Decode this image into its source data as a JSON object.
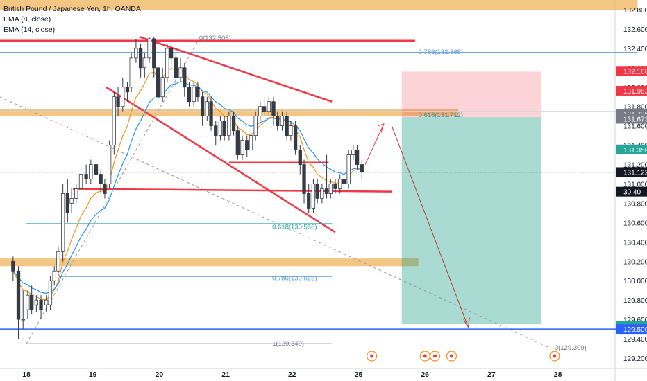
{
  "chart_data": {
    "type": "candlestick",
    "symbol": "British Pound / Japanese Yen, 1h, OANDA",
    "indicators": [
      "EMA (8, close)",
      "EMA (14, close)"
    ],
    "y_axis": {
      "range": [
        129.1,
        132.9
      ],
      "ticks": [
        "132.800",
        "132.600",
        "132.400",
        "132.200",
        "132.000",
        "131.800",
        "131.600",
        "131.400",
        "131.200",
        "131.000",
        "130.800",
        "130.600",
        "130.400",
        "130.200",
        "130.000",
        "129.800",
        "129.600",
        "129.400",
        "129.200"
      ]
    },
    "x_axis": {
      "ticks": [
        {
          "label": "18",
          "t": 0
        },
        {
          "label": "19",
          "t": 1
        },
        {
          "label": "20",
          "t": 2
        },
        {
          "label": "21",
          "t": 3
        },
        {
          "label": "22",
          "t": 4
        },
        {
          "label": "25",
          "t": 5
        },
        {
          "label": "26",
          "t": 6
        },
        {
          "label": "27",
          "t": 7
        },
        {
          "label": "28",
          "t": 8
        }
      ]
    },
    "price_tags": [
      {
        "value": "132.168",
        "price": 132.168,
        "color": "#f23645"
      },
      {
        "value": "131.963",
        "price": 131.963,
        "color": "#f23645"
      },
      {
        "value": "131.725",
        "price": 131.725,
        "color": "#787b86"
      },
      {
        "value": "131.673",
        "price": 131.673,
        "color": "#787b86"
      },
      {
        "value": "131.356",
        "price": 131.356,
        "color": "#26a69a"
      },
      {
        "value": "131.122",
        "price": 131.122,
        "color": "#131722"
      },
      {
        "value": "30:40",
        "price": 130.92,
        "color": "#131722"
      },
      {
        "value": "129.537",
        "price": 129.537,
        "color": "#26a69a"
      },
      {
        "value": "129.500",
        "price": 129.5,
        "color": "#2962ff"
      }
    ],
    "fib_labels": [
      {
        "text": "0(132.508)",
        "t": 2.6,
        "price": 132.508
      },
      {
        "text": "0.786(132.365)",
        "t": 5.9,
        "price": 132.365
      },
      {
        "text": "0.618(131.712)",
        "t": 5.9,
        "price": 131.712
      },
      {
        "text": "0.618(130.556)",
        "t": 3.7,
        "price": 130.556
      },
      {
        "text": "0.786(130.025)",
        "t": 3.7,
        "price": 130.025
      },
      {
        "text": "1(129.349)",
        "t": 3.7,
        "price": 129.349
      },
      {
        "text": "0(129.309)",
        "t": 7.95,
        "price": 129.309
      }
    ],
    "candles": [
      [
        -0.2,
        130.2,
        130.1,
        130.25,
        130.0
      ],
      [
        -0.12,
        130.1,
        129.6,
        130.15,
        129.4
      ],
      [
        -0.05,
        129.6,
        129.6,
        129.9,
        129.5
      ],
      [
        0.02,
        129.7,
        129.85,
        129.9,
        129.6
      ],
      [
        0.08,
        129.85,
        129.7,
        129.95,
        129.65
      ],
      [
        0.15,
        129.75,
        129.8,
        129.85,
        129.68
      ],
      [
        0.22,
        129.8,
        129.7,
        129.85,
        129.6
      ],
      [
        0.3,
        129.75,
        129.8,
        129.85,
        129.68
      ],
      [
        0.36,
        129.75,
        130.0,
        130.05,
        129.7
      ],
      [
        0.42,
        130.0,
        130.1,
        130.15,
        129.95
      ],
      [
        0.48,
        130.1,
        130.3,
        130.35,
        130.05
      ],
      [
        0.55,
        130.3,
        130.9,
        131.0,
        130.2
      ],
      [
        0.62,
        130.9,
        130.7,
        131.05,
        130.6
      ],
      [
        0.68,
        130.8,
        130.85,
        130.95,
        130.7
      ],
      [
        0.75,
        130.85,
        130.95,
        131.0,
        130.8
      ],
      [
        0.82,
        130.95,
        131.1,
        131.15,
        130.9
      ],
      [
        0.9,
        131.1,
        131.05,
        131.2,
        131.0
      ],
      [
        0.97,
        131.05,
        131.2,
        131.25,
        131.0
      ],
      [
        1.05,
        131.2,
        131.1,
        131.3,
        131.0
      ],
      [
        1.12,
        131.1,
        131.0,
        131.15,
        130.9
      ],
      [
        1.18,
        131.0,
        130.9,
        131.05,
        130.85
      ],
      [
        1.25,
        131.0,
        131.4,
        131.45,
        130.95
      ],
      [
        1.32,
        131.4,
        131.9,
        131.95,
        131.3
      ],
      [
        1.38,
        131.9,
        131.8,
        132.0,
        131.7
      ],
      [
        1.45,
        131.8,
        132.0,
        132.1,
        131.75
      ],
      [
        1.52,
        132.0,
        131.95,
        132.05,
        131.85
      ],
      [
        1.58,
        132.0,
        132.3,
        132.35,
        131.95
      ],
      [
        1.65,
        132.3,
        132.4,
        132.5,
        132.25
      ],
      [
        1.72,
        132.4,
        132.2,
        132.45,
        132.1
      ],
      [
        1.78,
        132.2,
        132.3,
        132.35,
        132.1
      ],
      [
        1.85,
        132.3,
        132.5,
        132.52,
        132.25
      ],
      [
        1.92,
        132.5,
        132.2,
        132.52,
        132.1
      ],
      [
        1.98,
        132.2,
        131.9,
        132.25,
        131.8
      ],
      [
        2.05,
        131.9,
        132.1,
        132.2,
        131.85
      ],
      [
        2.12,
        132.1,
        132.4,
        132.45,
        132.05
      ],
      [
        2.18,
        132.4,
        132.3,
        132.45,
        132.2
      ],
      [
        2.25,
        132.3,
        132.1,
        132.35,
        132.0
      ],
      [
        2.32,
        132.1,
        132.2,
        132.3,
        132.05
      ],
      [
        2.38,
        132.2,
        132.0,
        132.25,
        131.9
      ],
      [
        2.45,
        132.0,
        131.85,
        132.05,
        131.8
      ],
      [
        2.52,
        131.85,
        132.0,
        132.05,
        131.8
      ],
      [
        2.58,
        132.0,
        131.9,
        132.05,
        131.85
      ],
      [
        2.65,
        131.9,
        131.7,
        131.95,
        131.6
      ],
      [
        2.72,
        131.7,
        131.85,
        131.9,
        131.65
      ],
      [
        2.78,
        131.85,
        131.6,
        131.9,
        131.55
      ],
      [
        2.85,
        131.6,
        131.5,
        131.65,
        131.4
      ],
      [
        2.92,
        131.5,
        131.65,
        131.7,
        131.45
      ],
      [
        2.98,
        131.65,
        131.5,
        131.7,
        131.45
      ],
      [
        3.05,
        131.5,
        131.7,
        131.75,
        131.45
      ],
      [
        3.12,
        131.7,
        131.55,
        131.75,
        131.5
      ],
      [
        3.18,
        131.55,
        131.3,
        131.6,
        131.25
      ],
      [
        3.25,
        131.3,
        131.45,
        131.5,
        131.25
      ],
      [
        3.32,
        131.45,
        131.35,
        131.5,
        131.28
      ],
      [
        3.38,
        131.35,
        131.5,
        131.55,
        131.3
      ],
      [
        3.45,
        131.5,
        131.7,
        131.75,
        131.45
      ],
      [
        3.52,
        131.7,
        131.8,
        131.85,
        131.65
      ],
      [
        3.58,
        131.8,
        131.75,
        131.9,
        131.7
      ],
      [
        3.65,
        131.75,
        131.85,
        131.9,
        131.7
      ],
      [
        3.72,
        131.85,
        131.7,
        131.9,
        131.6
      ],
      [
        3.78,
        131.7,
        131.6,
        131.75,
        131.55
      ],
      [
        3.85,
        131.6,
        131.7,
        131.75,
        131.55
      ],
      [
        3.92,
        131.7,
        131.5,
        131.75,
        131.45
      ],
      [
        3.98,
        131.5,
        131.6,
        131.65,
        131.45
      ],
      [
        4.05,
        131.6,
        131.35,
        131.65,
        131.3
      ],
      [
        4.12,
        131.35,
        131.2,
        131.4,
        131.1
      ],
      [
        4.18,
        131.2,
        130.9,
        131.25,
        130.8
      ],
      [
        4.25,
        130.9,
        130.75,
        131.0,
        130.7
      ],
      [
        4.32,
        130.75,
        131.0,
        131.05,
        130.7
      ],
      [
        4.38,
        131.0,
        130.85,
        131.05,
        130.8
      ],
      [
        4.45,
        130.85,
        130.95,
        131.0,
        130.8
      ],
      [
        4.52,
        130.95,
        130.9,
        131.3,
        130.85
      ],
      [
        4.58,
        130.9,
        131.0,
        131.05,
        130.85
      ],
      [
        4.65,
        131.0,
        130.95,
        131.05,
        130.9
      ],
      [
        4.72,
        130.95,
        131.05,
        131.1,
        130.9
      ],
      [
        4.78,
        131.05,
        131.0,
        131.1,
        130.95
      ],
      [
        4.85,
        131.0,
        131.3,
        131.35,
        130.95
      ],
      [
        4.92,
        131.3,
        131.35,
        131.4,
        131.25
      ],
      [
        4.98,
        131.35,
        131.2,
        131.4,
        131.15
      ],
      [
        5.05,
        131.2,
        131.12,
        131.25,
        131.05
      ]
    ],
    "zones": [
      {
        "y1": 132.9,
        "y2": 132.8,
        "t1": -0.4,
        "t2": 9.2,
        "color": "#f0b35a"
      },
      {
        "y1": 131.77,
        "y2": 131.7,
        "t1": -0.4,
        "t2": 6.5,
        "color": "#f0b35a"
      },
      {
        "y1": 130.23,
        "y2": 130.15,
        "t1": -0.4,
        "t2": 5.9,
        "color": "#f0b35a"
      }
    ],
    "position": {
      "t1": 5.65,
      "t2": 7.75,
      "entry": 131.69,
      "stop": 132.16,
      "target": 129.55
    },
    "lines": [
      {
        "t1": -0.4,
        "p1": 132.48,
        "t2": 5.85,
        "p2": 132.48,
        "color": "#f23645",
        "w": 2.5
      },
      {
        "t1": -0.4,
        "p1": 132.36,
        "t2": 9.2,
        "p2": 132.36,
        "color": "#5b9bd5",
        "w": 0.8
      },
      {
        "t1": 0.7,
        "p1": 130.95,
        "t2": 5.5,
        "p2": 130.92,
        "color": "#f23645",
        "w": 2.5
      },
      {
        "t1": 3.05,
        "p1": 131.22,
        "t2": 4.55,
        "p2": 131.22,
        "color": "#f23645",
        "w": 2.5
      },
      {
        "t1": 1.7,
        "p1": 132.52,
        "t2": 4.6,
        "p2": 131.85,
        "color": "#f23645",
        "w": 2.5
      },
      {
        "t1": 1.2,
        "p1": 132.0,
        "t2": 4.65,
        "p2": 130.5,
        "color": "#f23645",
        "w": 2.5
      },
      {
        "t1": -0.4,
        "p1": 131.75,
        "t2": 9.2,
        "p2": 131.75,
        "color": "#d1d4dc",
        "w": 0.8
      },
      {
        "t1": 0.0,
        "p1": 130.59,
        "t2": 4.6,
        "p2": 130.59,
        "color": "#26a69a",
        "w": 0.8
      },
      {
        "t1": 0.5,
        "p1": 130.04,
        "t2": 4.6,
        "p2": 130.04,
        "color": "#5b9bd5",
        "w": 0.8
      },
      {
        "t1": 0.0,
        "p1": 129.35,
        "t2": 4.6,
        "p2": 129.35,
        "color": "#9598a1",
        "w": 0.8
      },
      {
        "t1": -0.4,
        "p1": 129.5,
        "t2": 9.2,
        "p2": 129.5,
        "color": "#2962ff",
        "w": 1.5
      },
      {
        "t1": -0.4,
        "p1": 131.12,
        "t2": 9.2,
        "p2": 131.12,
        "color": "#131722",
        "w": 0.8,
        "dash": "2,2"
      }
    ]
  }
}
